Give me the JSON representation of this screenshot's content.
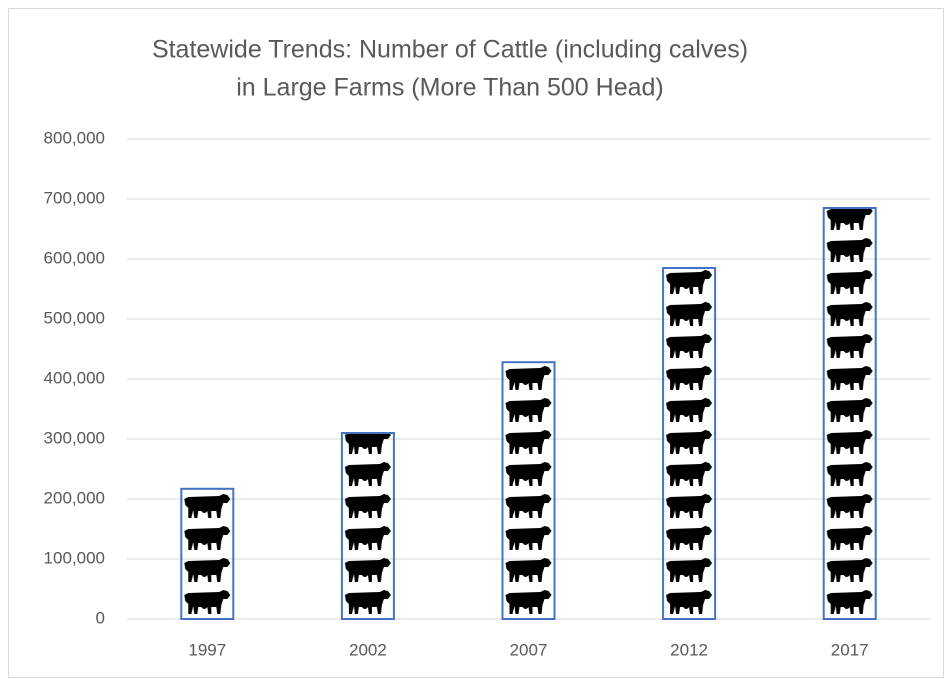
{
  "chart_data": {
    "type": "bar",
    "title": [
      "Statewide Trends:  Number of Cattle (including calves)",
      "in Large Farms (More Than 500 Head)"
    ],
    "categories": [
      "1997",
      "2002",
      "2007",
      "2012",
      "2017"
    ],
    "values": [
      217000,
      310000,
      428000,
      585000,
      685000
    ],
    "color": "#4472c4",
    "ylim": [
      0,
      800000
    ],
    "yticks": [
      0,
      {
        "value": 100000,
        "label": "100,000"
      },
      {
        "value": 200000,
        "label": "200,000"
      },
      {
        "value": 300000,
        "label": "300,000"
      },
      {
        "value": 400000,
        "label": "400,000"
      },
      {
        "value": 500000,
        "label": "500,000"
      },
      {
        "value": 600000,
        "label": "600,000"
      },
      {
        "value": 700000,
        "label": "700,000"
      },
      {
        "value": 800000,
        "label": "800,000"
      }
    ],
    "grid": true
  }
}
